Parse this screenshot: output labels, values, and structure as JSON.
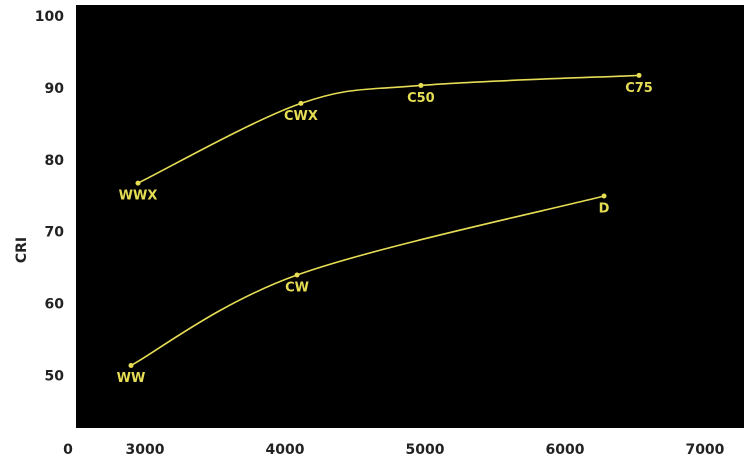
{
  "chart_data": {
    "type": "line",
    "y_label": "CRI",
    "x_origin_label": "0",
    "xlim": [
      2507,
      7279
    ],
    "ylim": [
      42.8,
      101.7
    ],
    "xticks": [
      3000,
      4000,
      5000,
      6000,
      7000
    ],
    "yticks": [
      50,
      60,
      70,
      80,
      90,
      100
    ],
    "background": "#000000",
    "series": [
      {
        "color": "#e6dd55",
        "x": [
          2950,
          4114,
          4971,
          6529
        ],
        "values": [
          76.9,
          88.0,
          90.5,
          91.9
        ],
        "point_labels": [
          "WWX",
          "CWX",
          "C50",
          "C75"
        ]
      },
      {
        "color": "#e6dd55",
        "x": [
          2900,
          4086,
          6279
        ],
        "values": [
          51.5,
          64.1,
          75.1
        ],
        "point_labels": [
          "WW",
          "CW",
          "D"
        ]
      }
    ]
  }
}
